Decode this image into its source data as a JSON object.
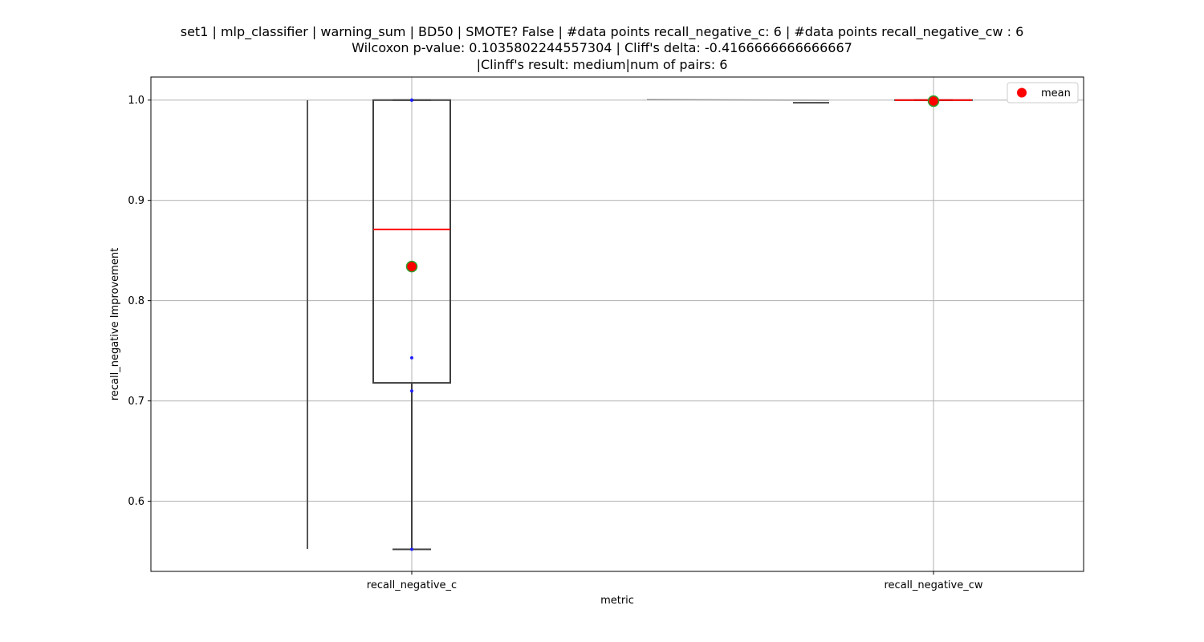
{
  "chart_data": {
    "type": "box",
    "title_lines": [
      "set1 | mlp_classifier | warning_sum | BD50 | SMOTE? False | #data points recall_negative_c: 6 | #data points recall_negative_cw : 6",
      "Wilcoxon p-value: 0.1035802244557304 | Cliff's delta: -0.4166666666666667",
      "|Clinff's result: medium|num of pairs: 6"
    ],
    "xlabel": "metric",
    "ylabel": "recall_negative Improvement",
    "categories": [
      "recall_negative_c",
      "recall_negative_cw"
    ],
    "ylim": [
      0.53,
      1.023
    ],
    "yticks": [
      0.6,
      0.7,
      0.8,
      0.9,
      1.0
    ],
    "ytick_labels": [
      "0.6",
      "0.7",
      "0.8",
      "0.9",
      "1.0"
    ],
    "grid": true,
    "legend": {
      "position": "top-right",
      "entries": [
        {
          "label": "mean",
          "color": "#ff0000"
        }
      ]
    },
    "series": [
      {
        "category": "recall_negative_c",
        "q1": 0.718,
        "median": 0.871,
        "q3": 1.0,
        "whisker_low": 0.552,
        "whisker_high": 1.0,
        "mean": 0.834,
        "points": [
          1.0,
          1.0,
          0.743,
          0.71,
          0.552,
          1.0
        ]
      },
      {
        "category": "recall_negative_cw",
        "q1": 1.0,
        "median": 1.0,
        "q3": 1.0,
        "whisker_low": 1.0,
        "whisker_high": 1.0,
        "mean": 0.999,
        "points": [
          1.0,
          1.0,
          1.0,
          1.0,
          1.0,
          1.0
        ]
      }
    ],
    "colors": {
      "box_edge": "#3f3f3f",
      "median": "#ff0000",
      "mean_fill": "#ff0000",
      "mean_edge": "#2ca02c",
      "point": "#1f1fff",
      "grid": "#b0b0b0"
    }
  }
}
